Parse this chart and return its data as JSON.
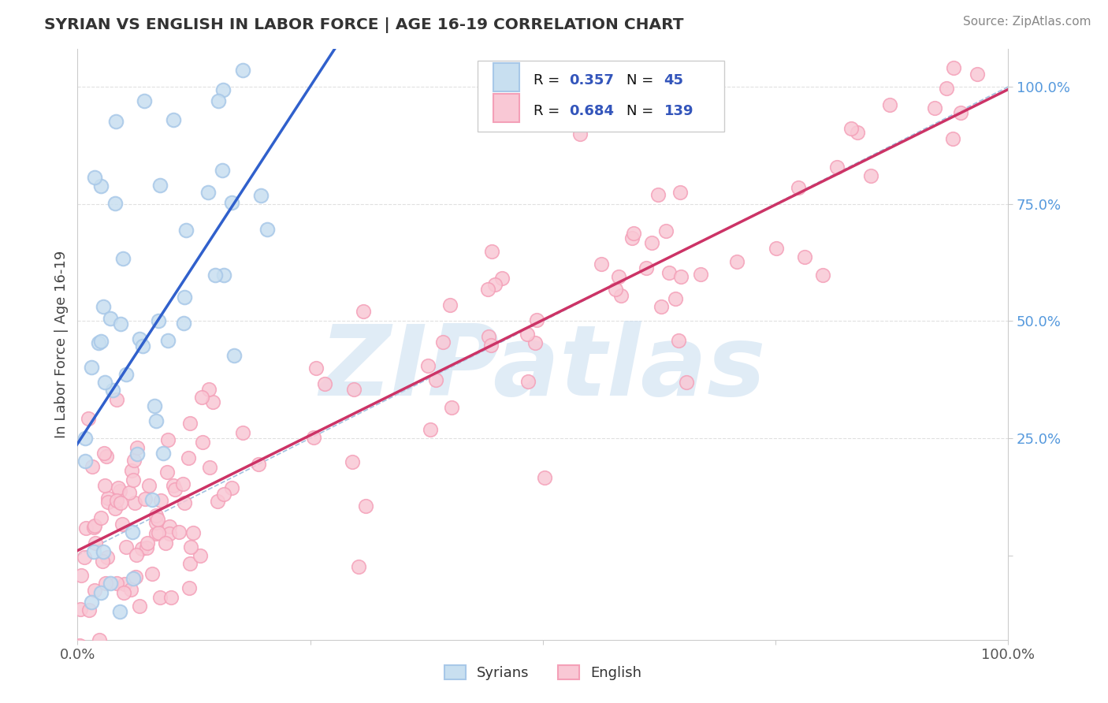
{
  "title": "SYRIAN VS ENGLISH IN LABOR FORCE | AGE 16-19 CORRELATION CHART",
  "source": "Source: ZipAtlas.com",
  "ylabel": "In Labor Force | Age 16-19",
  "legend_R1": "R = 0.357",
  "legend_N1": "45",
  "legend_R2": "R = 0.684",
  "legend_N2": "139",
  "blue_color": "#a8c8e8",
  "blue_fill": "#c8dff0",
  "pink_color": "#f4a0b8",
  "pink_fill": "#f9c8d5",
  "blue_line_color": "#3060cc",
  "pink_line_color": "#cc3366",
  "dash_color": "#99bbdd",
  "watermark": "ZIPatlas",
  "watermark_color": "#c8ddf0",
  "background_color": "#ffffff",
  "grid_color": "#e0e0e0",
  "right_tick_color": "#5599dd",
  "title_color": "#333333",
  "source_color": "#888888",
  "legend_text_color": "#111111",
  "legend_val_color": "#3355bb"
}
